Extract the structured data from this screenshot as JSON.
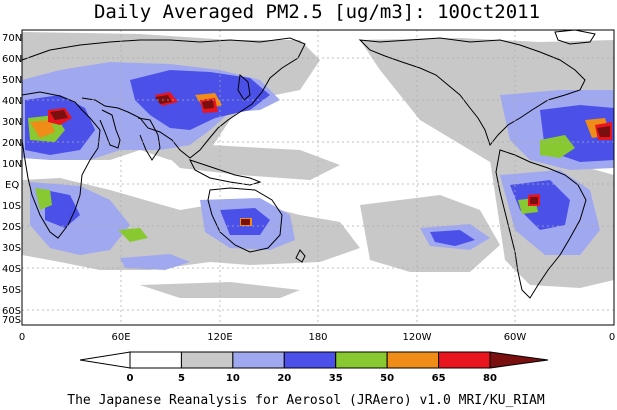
{
  "title": "Daily Averaged PM2.5 [ug/m3]: 10Oct2011",
  "credit": "The Japanese Reanalysis for Aerosol (JRAero) v1.0 MRI/KU_RIAM",
  "lat_labels": [
    "70N",
    "60N",
    "50N",
    "40N",
    "30N",
    "20N",
    "10N",
    "EQ",
    "10S",
    "20S",
    "30S",
    "40S",
    "50S",
    "60S",
    "70S"
  ],
  "lon_labels": [
    "0",
    "60E",
    "120E",
    "180",
    "120W",
    "60W",
    "0"
  ],
  "colorbar": {
    "labels": [
      "0",
      "5",
      "10",
      "20",
      "35",
      "50",
      "65",
      "80"
    ],
    "colors": [
      "#ffffff",
      "#c8c8c8",
      "#a0a8f0",
      "#4a50e8",
      "#88c830",
      "#f08c18",
      "#e8141e",
      "#7a0f0f"
    ],
    "border": "#000000"
  },
  "layer_colors": {
    "gray": "#c8c8c8",
    "lightblue": "#a0a8f0",
    "blue": "#4a50e8",
    "green": "#88c830",
    "orange": "#f08c18",
    "red": "#e8141e",
    "darkred": "#7a0f0f"
  }
}
